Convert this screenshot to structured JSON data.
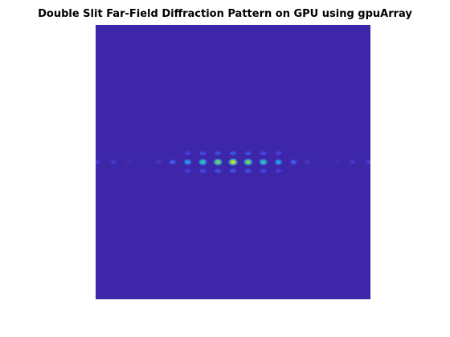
{
  "figure": {
    "title": "Double Slit Far-Field Diffraction Pattern on GPU using gpuArray"
  },
  "chart_data": {
    "type": "heatmap",
    "title": "Double Slit Far-Field Diffraction Pattern on GPU using gpuArray",
    "xlabel": "",
    "ylabel": "",
    "axes_visible": false,
    "colormap": "parula",
    "background_color": "#3E26A8",
    "description_of_pattern": "horizontal row of fringes",
    "fringes": [
      {
        "x": -0.99,
        "intensity": 0.1
      },
      {
        "x": -0.87,
        "intensity": 0.08
      },
      {
        "x": -0.76,
        "intensity": 0.03
      },
      {
        "x": -0.54,
        "intensity": 0.06
      },
      {
        "x": -0.44,
        "intensity": 0.2
      },
      {
        "x": -0.33,
        "intensity": 0.42
      },
      {
        "x": -0.22,
        "intensity": 0.62
      },
      {
        "x": -0.11,
        "intensity": 0.82
      },
      {
        "x": 0.0,
        "intensity": 1.0
      },
      {
        "x": 0.11,
        "intensity": 0.82
      },
      {
        "x": 0.22,
        "intensity": 0.62
      },
      {
        "x": 0.33,
        "intensity": 0.42
      },
      {
        "x": 0.44,
        "intensity": 0.2
      },
      {
        "x": 0.54,
        "intensity": 0.06
      },
      {
        "x": 0.76,
        "intensity": 0.03
      },
      {
        "x": 0.87,
        "intensity": 0.08
      },
      {
        "x": 0.99,
        "intensity": 0.1
      }
    ],
    "secondary_fringe_intensity_ratio": 0.12
  }
}
